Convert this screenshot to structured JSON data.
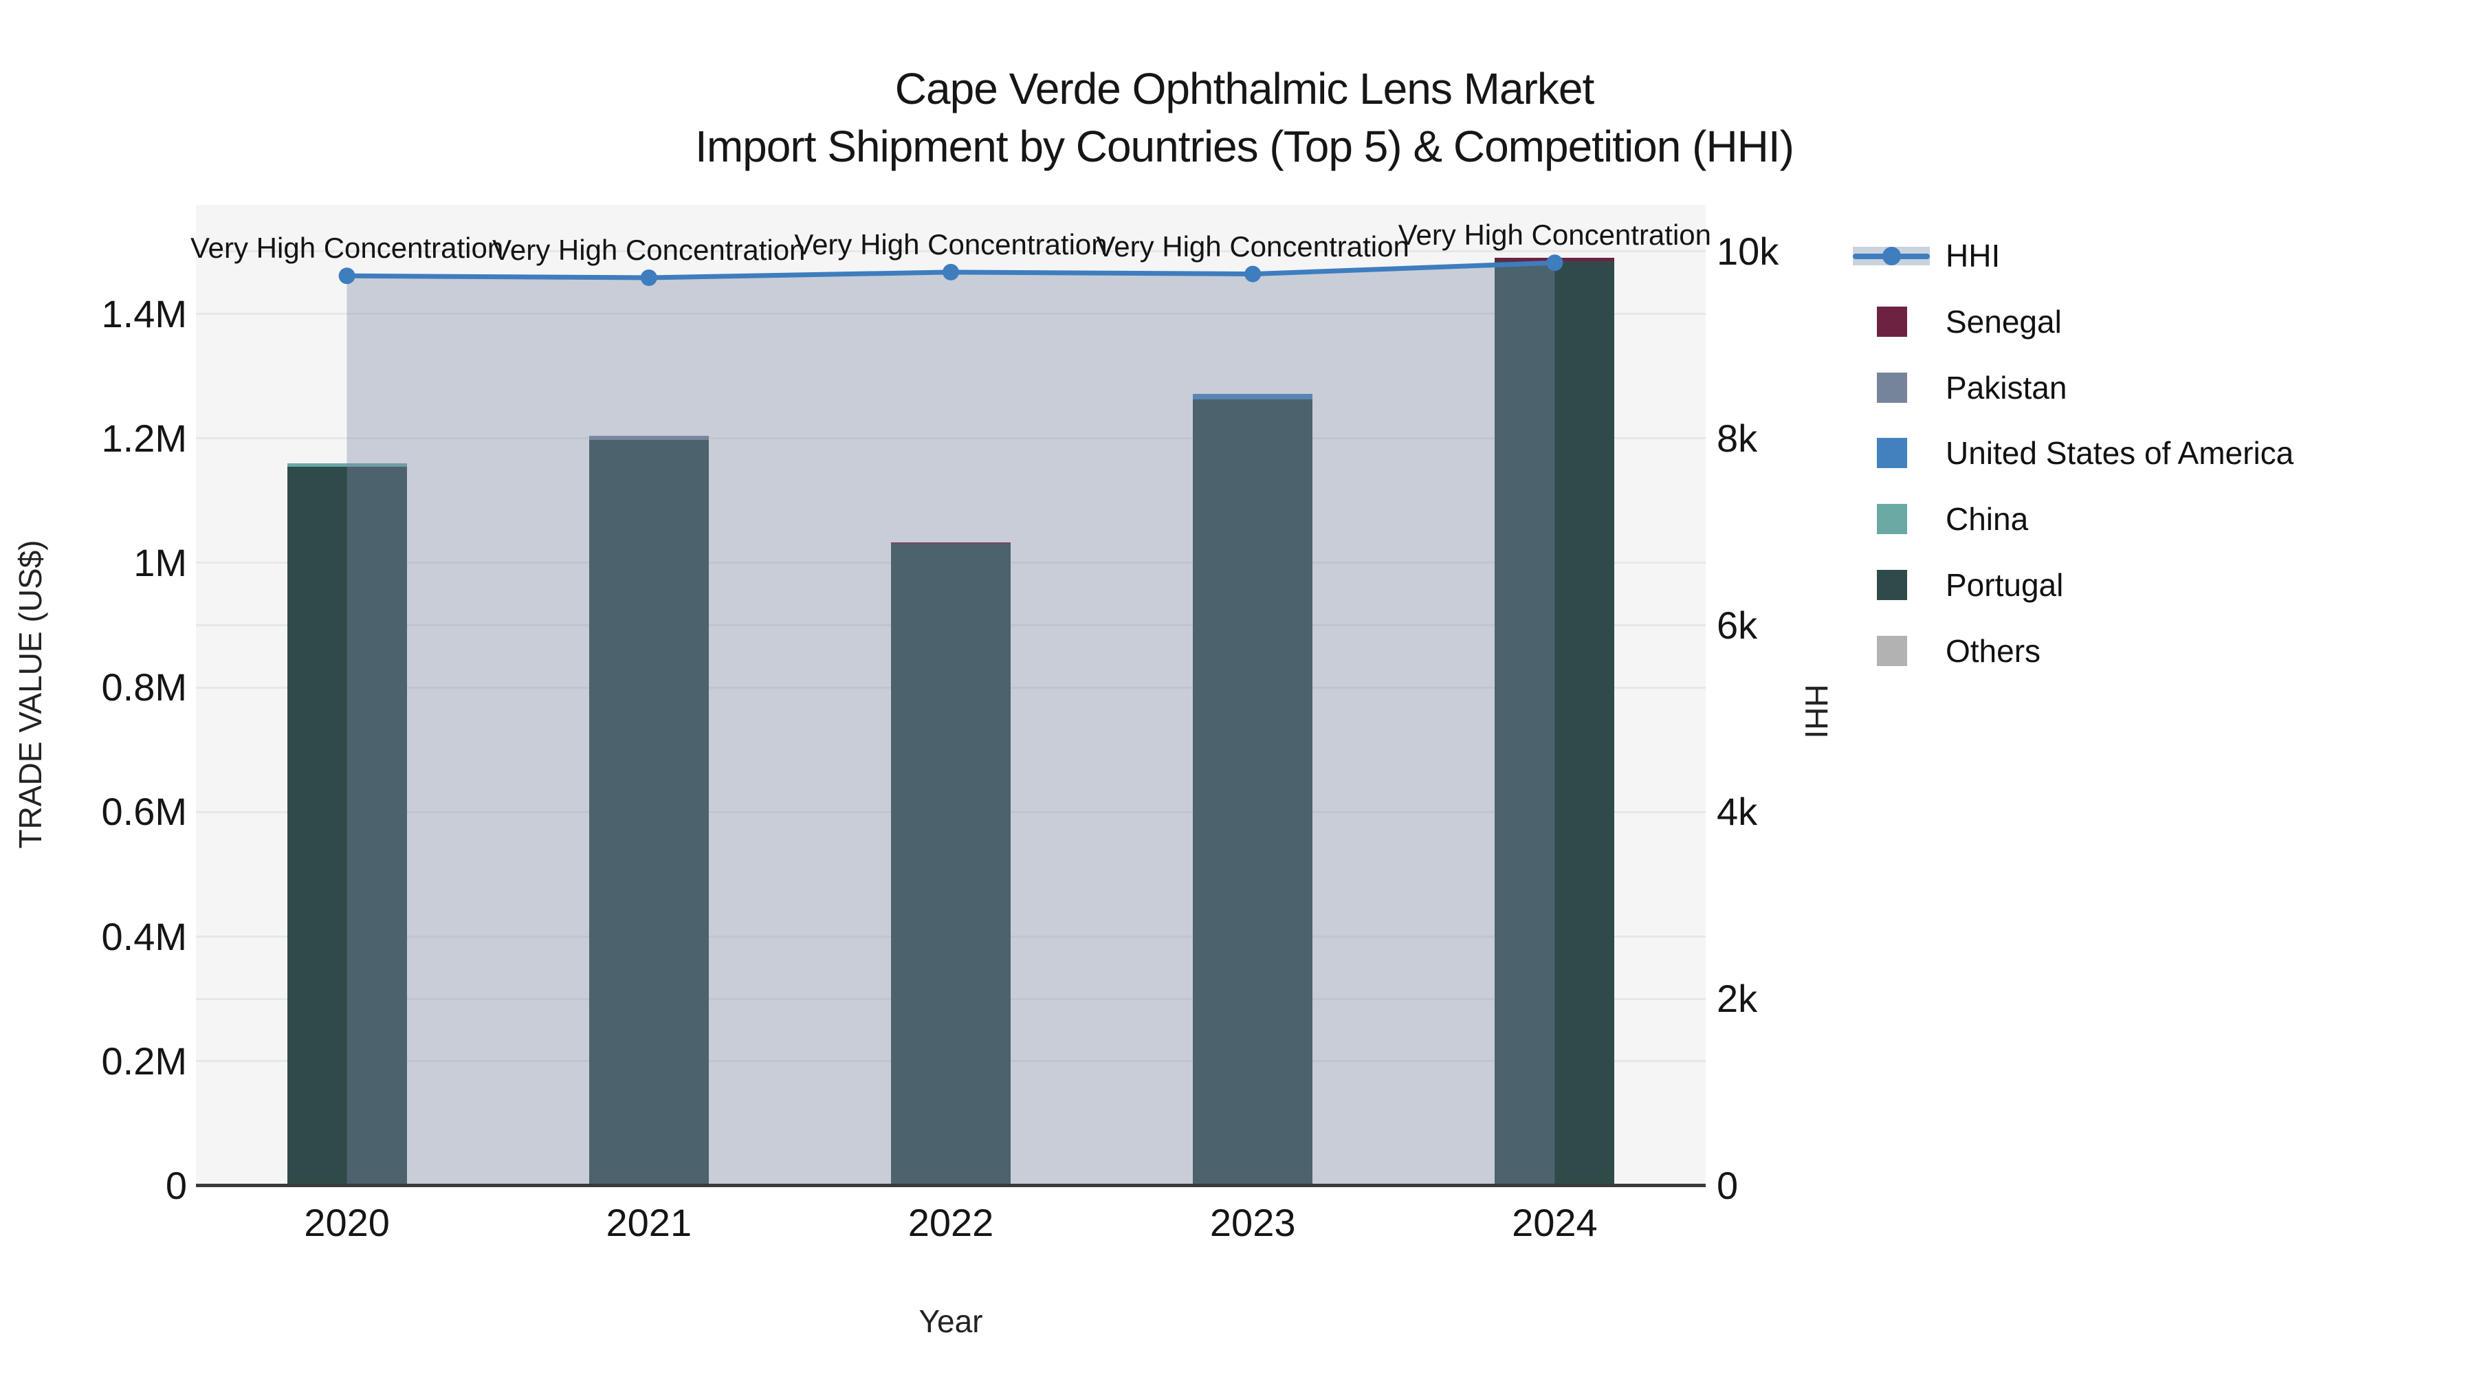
{
  "title": {
    "line1": "Cape Verde Ophthalmic Lens Market",
    "line2": "Import Shipment by Countries (Top 5) & Competition (HHI)"
  },
  "labels": {
    "x_axis_title": "Year",
    "left_axis_title": "TRADE VALUE (US$)",
    "right_axis_title": "HHI"
  },
  "chart_data": {
    "type": "bar",
    "subtype": "stacked-bars-with-secondary-axis-line",
    "title": "Cape Verde Ophthalmic Lens Market",
    "subtitle": "Import Shipment by Countries (Top 5) & Competition (HHI)",
    "xlabel": "Year",
    "ylabel_left": "TRADE VALUE (US$)",
    "ylabel_right": "HHI",
    "categories": [
      "2020",
      "2021",
      "2022",
      "2023",
      "2024"
    ],
    "ylim_left": [
      0,
      1575000
    ],
    "ylim_right": [
      0,
      10500
    ],
    "grid": true,
    "legend_position": "right",
    "left_ticks": [
      {
        "label": "0",
        "value": 0
      },
      {
        "label": "0.2M",
        "value": 200000
      },
      {
        "label": "0.4M",
        "value": 400000
      },
      {
        "label": "0.6M",
        "value": 600000
      },
      {
        "label": "0.8M",
        "value": 800000
      },
      {
        "label": "1M",
        "value": 1000000
      },
      {
        "label": "1.2M",
        "value": 1200000
      },
      {
        "label": "1.4M",
        "value": 1400000
      }
    ],
    "right_ticks": [
      {
        "label": "0",
        "value": 0
      },
      {
        "label": "2k",
        "value": 2000
      },
      {
        "label": "4k",
        "value": 4000
      },
      {
        "label": "6k",
        "value": 6000
      },
      {
        "label": "8k",
        "value": 8000
      },
      {
        "label": "10k",
        "value": 10000
      }
    ],
    "line_series": {
      "name": "HHI",
      "axis": "right",
      "values": [
        9740,
        9720,
        9780,
        9760,
        9880
      ],
      "color": "#3E7DBE",
      "line_width": 7,
      "marker_radius": 12,
      "area_fill": "rgba(125,140,165,0.38)",
      "legend_band_color": "#C9D2DD"
    },
    "bar_series": [
      {
        "year": "2020",
        "total": 1160000,
        "segments": [
          {
            "country": "Portugal",
            "value": 1154000
          },
          {
            "country": "China",
            "value": 6000
          }
        ]
      },
      {
        "year": "2021",
        "total": 1204000,
        "segments": [
          {
            "country": "Portugal",
            "value": 1198000
          },
          {
            "country": "Pakistan",
            "value": 6000
          }
        ]
      },
      {
        "year": "2022",
        "total": 1033000,
        "segments": [
          {
            "country": "Portugal",
            "value": 1030000
          },
          {
            "country": "Senegal",
            "value": 3000
          }
        ]
      },
      {
        "year": "2023",
        "total": 1271000,
        "segments": [
          {
            "country": "Portugal",
            "value": 1263000
          },
          {
            "country": "United States of America",
            "value": 8000
          }
        ]
      },
      {
        "year": "2024",
        "total": 1490000,
        "segments": [
          {
            "country": "Portugal",
            "value": 1485000
          },
          {
            "country": "Senegal",
            "value": 5000
          }
        ]
      }
    ],
    "legend": [
      {
        "label": "HHI",
        "type": "line",
        "color": "#3E7DBE"
      },
      {
        "label": "Senegal",
        "type": "swatch",
        "color": "#6E2242"
      },
      {
        "label": "Pakistan",
        "type": "swatch",
        "color": "#75849B"
      },
      {
        "label": "United States of America",
        "type": "swatch",
        "color": "#4381BE"
      },
      {
        "label": "China",
        "type": "swatch",
        "color": "#6AA9A4"
      },
      {
        "label": "Portugal",
        "type": "swatch",
        "color": "#2E4A49"
      },
      {
        "label": "Others",
        "type": "swatch",
        "color": "#B2B2B2"
      }
    ],
    "annotations": [
      {
        "year": "2020",
        "text": "Very High Concentration"
      },
      {
        "year": "2021",
        "text": "Very High Concentration"
      },
      {
        "year": "2022",
        "text": "Very High Concentration"
      },
      {
        "year": "2023",
        "text": "Very High Concentration"
      },
      {
        "year": "2024",
        "text": "Very High Concentration"
      }
    ],
    "colors": {
      "plot_background": "#F5F5F5",
      "grid": "#E7E7E7",
      "axis_line": "#3A3A3A"
    }
  }
}
